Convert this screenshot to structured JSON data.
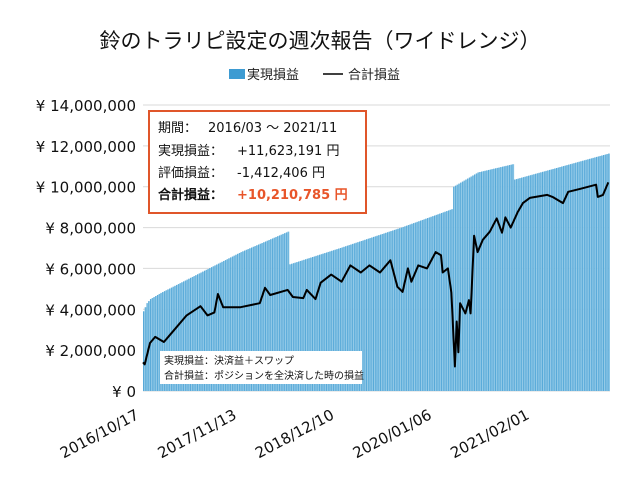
{
  "chart_data": {
    "type": "bar+line",
    "title": "鈴のトラリピ設定の週次報告（ワイドレンジ）",
    "ylim": [
      0,
      14000000
    ],
    "yticks": [
      0,
      2000000,
      4000000,
      6000000,
      8000000,
      10000000,
      12000000,
      14000000
    ],
    "ytick_labels": [
      "¥ 0",
      "¥ 2,000,000",
      "¥ 4,000,000",
      "¥ 6,000,000",
      "¥ 8,000,000",
      "¥ 10,000,000",
      "¥ 12,000,000",
      "¥ 14,000,000"
    ],
    "xlim": [
      "2016-10-17",
      "2021-12-06"
    ],
    "xticks": [
      "2016-10-17",
      "2017-11-13",
      "2018-12-10",
      "2020-01-06",
      "2021-02-01"
    ],
    "xtick_labels": [
      "2016/10/17",
      "2017/11/13",
      "2018/12/10",
      "2020/01/06",
      "2021/02/01"
    ],
    "grid": true,
    "legend_position": "top",
    "series": [
      {
        "name": "実現損益",
        "type": "bar",
        "color": "#3d9bd2",
        "points": [
          [
            "2016-10-17",
            3900000
          ],
          [
            "2016-10-31",
            4300000
          ],
          [
            "2016-11-14",
            4500000
          ],
          [
            "2016-12-26",
            4800000
          ],
          [
            "2017-06-05",
            5800000
          ],
          [
            "2017-11-13",
            6800000
          ],
          [
            "2018-05-21",
            7800000
          ],
          [
            "2018-05-28",
            6200000
          ],
          [
            "2018-12-17",
            7000000
          ],
          [
            "2019-08-19",
            8000000
          ],
          [
            "2020-03-09",
            8900000
          ],
          [
            "2020-03-16",
            10000000
          ],
          [
            "2020-06-22",
            10700000
          ],
          [
            "2020-11-09",
            11100000
          ],
          [
            "2020-11-16",
            10350000
          ],
          [
            "2021-11-29",
            11623191
          ]
        ]
      },
      {
        "name": "合計損益",
        "type": "line",
        "color": "#000000",
        "points": [
          [
            "2016-10-17",
            1400000
          ],
          [
            "2016-10-24",
            1300000
          ],
          [
            "2016-11-14",
            2350000
          ],
          [
            "2016-12-05",
            2650000
          ],
          [
            "2017-01-09",
            2400000
          ],
          [
            "2017-02-13",
            2900000
          ],
          [
            "2017-04-10",
            3700000
          ],
          [
            "2017-06-05",
            4150000
          ],
          [
            "2017-07-03",
            3700000
          ],
          [
            "2017-07-31",
            3850000
          ],
          [
            "2017-08-14",
            4750000
          ],
          [
            "2017-09-04",
            4100000
          ],
          [
            "2017-11-13",
            4100000
          ],
          [
            "2018-01-29",
            4300000
          ],
          [
            "2018-02-19",
            5050000
          ],
          [
            "2018-03-12",
            4700000
          ],
          [
            "2018-05-21",
            4950000
          ],
          [
            "2018-06-11",
            4600000
          ],
          [
            "2018-07-23",
            4550000
          ],
          [
            "2018-08-06",
            4950000
          ],
          [
            "2018-09-10",
            4500000
          ],
          [
            "2018-10-01",
            5300000
          ],
          [
            "2018-11-12",
            5700000
          ],
          [
            "2018-12-24",
            5350000
          ],
          [
            "2019-01-28",
            6150000
          ],
          [
            "2019-03-11",
            5800000
          ],
          [
            "2019-04-15",
            6150000
          ],
          [
            "2019-05-27",
            5800000
          ],
          [
            "2019-07-08",
            6400000
          ],
          [
            "2019-08-05",
            5100000
          ],
          [
            "2019-08-26",
            4850000
          ],
          [
            "2019-09-16",
            6000000
          ],
          [
            "2019-09-30",
            5350000
          ],
          [
            "2019-10-28",
            6150000
          ],
          [
            "2019-12-02",
            6000000
          ],
          [
            "2020-01-06",
            6800000
          ],
          [
            "2020-01-27",
            6650000
          ],
          [
            "2020-02-03",
            5800000
          ],
          [
            "2020-02-24",
            6000000
          ],
          [
            "2020-03-09",
            4800000
          ],
          [
            "2020-03-23",
            1200000
          ],
          [
            "2020-03-30",
            3400000
          ],
          [
            "2020-04-06",
            1900000
          ],
          [
            "2020-04-13",
            4300000
          ],
          [
            "2020-05-04",
            3800000
          ],
          [
            "2020-05-18",
            4450000
          ],
          [
            "2020-05-25",
            3800000
          ],
          [
            "2020-06-08",
            7600000
          ],
          [
            "2020-06-22",
            6800000
          ],
          [
            "2020-07-13",
            7400000
          ],
          [
            "2020-08-10",
            7800000
          ],
          [
            "2020-09-07",
            8450000
          ],
          [
            "2020-09-28",
            7750000
          ],
          [
            "2020-10-12",
            8500000
          ],
          [
            "2020-11-02",
            8000000
          ],
          [
            "2020-11-30",
            8750000
          ],
          [
            "2020-12-21",
            9200000
          ],
          [
            "2021-01-18",
            9450000
          ],
          [
            "2021-03-29",
            9600000
          ],
          [
            "2021-04-19",
            9500000
          ],
          [
            "2021-05-31",
            9200000
          ],
          [
            "2021-06-21",
            9750000
          ],
          [
            "2021-08-09",
            9900000
          ],
          [
            "2021-10-11",
            10100000
          ],
          [
            "2021-10-18",
            9500000
          ],
          [
            "2021-11-08",
            9600000
          ],
          [
            "2021-11-29",
            10210785
          ]
        ]
      }
    ],
    "summary_box": {
      "period_label": "期間：",
      "period_value": "2016/03 ～ 2021/11",
      "realized_label": "実現損益：",
      "realized_value": "+11,623,191 円",
      "unrealized_label": "評価損益：",
      "unrealized_value": "-1,412,406 円",
      "total_label": "合計損益：",
      "total_value": "+10,210,785 円",
      "border_color": "#e0562a",
      "highlight_color": "#e8552a"
    },
    "notes": [
      "実現損益：決済益＋スワップ",
      "合計損益：ポジションを全決済した時の損益"
    ]
  }
}
